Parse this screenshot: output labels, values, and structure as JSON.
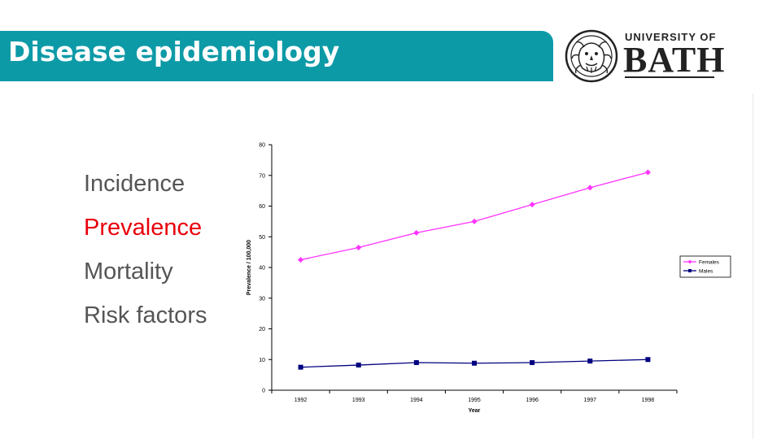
{
  "header": {
    "title": "Disease epidemiology"
  },
  "logo": {
    "line1": "UNIVERSITY OF",
    "line2": "BATH",
    "seal": "university-seal-icon"
  },
  "bullets": [
    "Incidence",
    "Prevalence",
    "Mortality",
    "Risk factors"
  ],
  "colors": {
    "title_bar": "#0d9aa7",
    "highlight": "#e8000b",
    "females": "#ff33ff",
    "males": "#000080"
  },
  "chart_data": {
    "type": "line",
    "title": "",
    "xlabel": "Year",
    "ylabel": "Prevalence / 100,000",
    "categories": [
      "1992",
      "1993",
      "1994",
      "1995",
      "1996",
      "1997",
      "1998"
    ],
    "ylim": [
      0,
      80
    ],
    "yticks": [
      "0",
      "10",
      "20",
      "30",
      "40",
      "50",
      "60",
      "70",
      "80"
    ],
    "grid": false,
    "legend": "right",
    "series": [
      {
        "name": "Females",
        "values": [
          42.5,
          46.5,
          51.3,
          55,
          60.5,
          66,
          71
        ],
        "marker": "diamond"
      },
      {
        "name": "Males",
        "values": [
          7.5,
          8.2,
          9,
          8.8,
          9,
          9.5,
          10
        ],
        "marker": "square"
      }
    ]
  }
}
